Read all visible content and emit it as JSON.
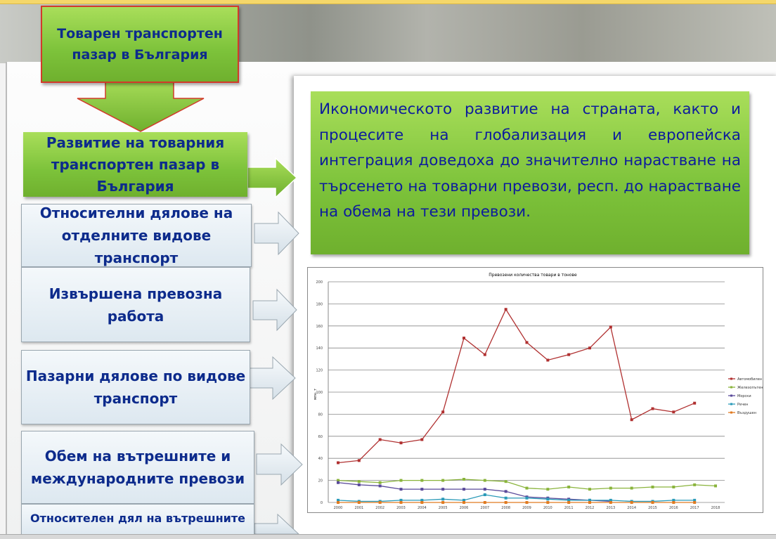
{
  "slide": {
    "top_box": "Товарен транспортен пазар в България",
    "development_box": "Развитие на товарния транспортен пазар в България",
    "menu": [
      "Относителни дялове на отделните видове транспорт",
      "Извършена превозна работа",
      "Пазарни дялове по видове транспорт",
      "Обем на вътрешните и международните превози",
      "Относителен дял на вътрешните"
    ],
    "info_text": "Икономическото развитие на страната, както и процесите на глобализация и европейска интеграция доведоха до значително нарастване на търсенето на товарни превози, респ. до нарастване на обема на тези превози."
  },
  "colors": {
    "accent_green": "#7cc23a",
    "text_blue": "#0d2b8c"
  },
  "chart_data": {
    "type": "line",
    "title": "Превозени количества товари в тонове",
    "ylabel": "млн. т",
    "ylim": [
      0,
      200
    ],
    "yticks": [
      0,
      20,
      40,
      60,
      80,
      100,
      120,
      140,
      160,
      180,
      200
    ],
    "grid": true,
    "legend": "right",
    "categories": [
      "2000",
      "2001",
      "2002",
      "2003",
      "2004",
      "2005",
      "2006",
      "2007",
      "2008",
      "2009",
      "2010",
      "2011",
      "2012",
      "2013",
      "2014",
      "2015",
      "2016",
      "2017",
      "2018"
    ],
    "series": [
      {
        "name": "Автомобилен",
        "color": "#b03030",
        "marker": "square",
        "values": [
          36,
          38,
          57,
          54,
          57,
          82,
          149,
          134,
          175,
          145,
          129,
          134,
          140,
          159,
          75,
          85,
          82,
          90,
          null
        ]
      },
      {
        "name": "Железопътен",
        "color": "#8ab43c",
        "marker": "triangle",
        "values": [
          20,
          19,
          18,
          20,
          20,
          20,
          21,
          20,
          19,
          13,
          12,
          14,
          12,
          13,
          13,
          14,
          14,
          16,
          15
        ]
      },
      {
        "name": "Морски",
        "color": "#5a4a9a",
        "marker": "x",
        "values": [
          18,
          16,
          15,
          12,
          12,
          12,
          12,
          12,
          10,
          5,
          4,
          3,
          2,
          1,
          null,
          null,
          null,
          null,
          null
        ]
      },
      {
        "name": "Речен",
        "color": "#2a9ab8",
        "marker": "circle",
        "values": [
          2,
          1,
          1,
          2,
          2,
          3,
          2,
          7,
          4,
          4,
          3,
          2,
          2,
          2,
          1,
          1,
          2,
          2,
          null
        ]
      },
      {
        "name": "Въздушен",
        "color": "#e07a20",
        "marker": "plus",
        "values": [
          0,
          0,
          0,
          0,
          0,
          0,
          0,
          0,
          0,
          0,
          0,
          0,
          0,
          0,
          0,
          0,
          0,
          0,
          null
        ]
      }
    ]
  }
}
